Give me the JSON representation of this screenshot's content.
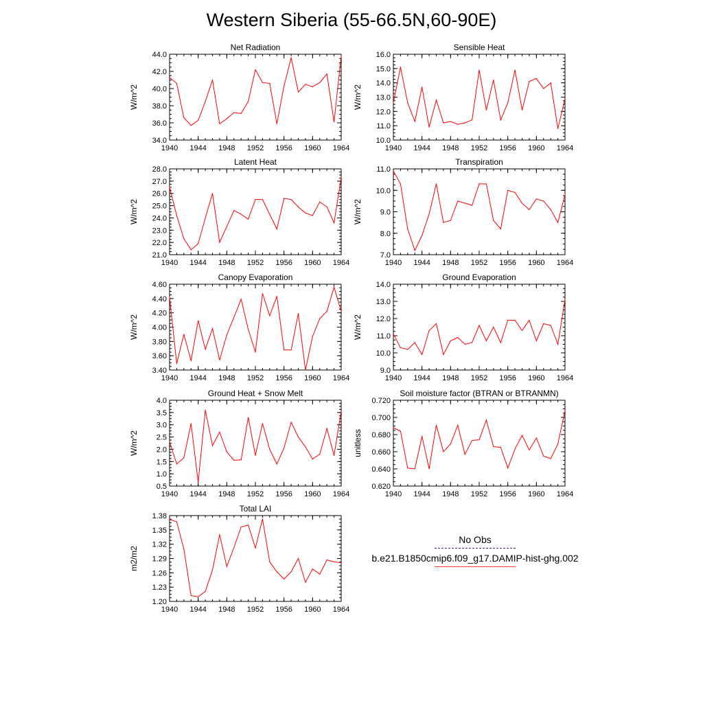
{
  "page": {
    "title": "Western Siberia (55-66.5N,60-90E)"
  },
  "legend": {
    "obs_label": "No Obs",
    "model_label": "b.e21.B1850cmip6.f09_g17.DAMIP-hist-ghg.002",
    "obs_color": "#2a2aaa",
    "model_color": "#ff0000"
  },
  "chart_data": [
    {
      "type": "line",
      "title": "Net Radiation",
      "xlabel": "",
      "ylabel": "W/m^2",
      "xlim": [
        1940,
        1964
      ],
      "ylim": [
        34.0,
        44.0
      ],
      "xticks": [
        "1940",
        "1944",
        "1948",
        "1952",
        "1956",
        "1960",
        "1964"
      ],
      "yticks": [
        "34.0",
        "36.0",
        "38.0",
        "40.0",
        "42.0",
        "44.0"
      ],
      "x": [
        1940,
        1941,
        1942,
        1943,
        1944,
        1945,
        1946,
        1947,
        1948,
        1949,
        1950,
        1951,
        1952,
        1953,
        1954,
        1955,
        1956,
        1957,
        1958,
        1959,
        1960,
        1961,
        1962,
        1963,
        1964
      ],
      "series": [
        {
          "values": [
            41.3,
            40.6,
            36.6,
            35.7,
            36.3,
            38.5,
            41.0,
            35.9,
            36.5,
            37.2,
            37.1,
            38.5,
            42.2,
            40.7,
            40.6,
            35.9,
            40.3,
            43.6,
            39.6,
            40.5,
            40.2,
            40.7,
            41.7,
            36.1,
            43.8
          ]
        }
      ]
    },
    {
      "type": "line",
      "title": "Sensible Heat",
      "xlabel": "",
      "ylabel": "W/m^2",
      "xlim": [
        1940,
        1964
      ],
      "ylim": [
        10.0,
        16.0
      ],
      "xticks": [
        "1940",
        "1944",
        "1948",
        "1952",
        "1956",
        "1960",
        "1964"
      ],
      "yticks": [
        "10.0",
        "11.0",
        "12.0",
        "13.0",
        "14.0",
        "15.0",
        "16.0"
      ],
      "x": [
        1940,
        1941,
        1942,
        1943,
        1944,
        1945,
        1946,
        1947,
        1948,
        1949,
        1950,
        1951,
        1952,
        1953,
        1954,
        1955,
        1956,
        1957,
        1958,
        1959,
        1960,
        1961,
        1962,
        1963,
        1964
      ],
      "series": [
        {
          "values": [
            12.6,
            15.1,
            12.6,
            11.3,
            13.7,
            10.9,
            12.8,
            11.2,
            11.3,
            11.1,
            11.2,
            11.4,
            14.9,
            12.1,
            14.2,
            11.4,
            12.6,
            14.9,
            12.1,
            14.1,
            14.3,
            13.6,
            14.0,
            10.8,
            12.9
          ]
        }
      ]
    },
    {
      "type": "line",
      "title": "Latent Heat",
      "xlabel": "",
      "ylabel": "W/m^2",
      "xlim": [
        1940,
        1964
      ],
      "ylim": [
        21.0,
        28.0
      ],
      "xticks": [
        "1940",
        "1944",
        "1948",
        "1952",
        "1956",
        "1960",
        "1964"
      ],
      "yticks": [
        "21.0",
        "22.0",
        "23.0",
        "24.0",
        "25.0",
        "26.0",
        "27.0",
        "28.0"
      ],
      "x": [
        1940,
        1941,
        1942,
        1943,
        1944,
        1945,
        1946,
        1947,
        1948,
        1949,
        1950,
        1951,
        1952,
        1953,
        1954,
        1955,
        1956,
        1957,
        1958,
        1959,
        1960,
        1961,
        1962,
        1963,
        1964
      ],
      "series": [
        {
          "values": [
            26.5,
            24.2,
            22.3,
            21.4,
            21.9,
            24.0,
            26.0,
            22.0,
            23.3,
            24.6,
            24.3,
            23.9,
            25.5,
            25.5,
            24.3,
            23.1,
            25.6,
            25.5,
            24.9,
            24.4,
            24.2,
            25.3,
            24.9,
            23.6,
            27.3
          ]
        }
      ]
    },
    {
      "type": "line",
      "title": "Transpiration",
      "xlabel": "",
      "ylabel": "W/m^2",
      "xlim": [
        1940,
        1964
      ],
      "ylim": [
        7.0,
        11.0
      ],
      "xticks": [
        "1940",
        "1944",
        "1948",
        "1952",
        "1956",
        "1960",
        "1964"
      ],
      "yticks": [
        "7.0",
        "8.0",
        "9.0",
        "10.0",
        "11.0"
      ],
      "x": [
        1940,
        1941,
        1942,
        1943,
        1944,
        1945,
        1946,
        1947,
        1948,
        1949,
        1950,
        1951,
        1952,
        1953,
        1954,
        1955,
        1956,
        1957,
        1958,
        1959,
        1960,
        1961,
        1962,
        1963,
        1964
      ],
      "series": [
        {
          "values": [
            10.9,
            10.3,
            8.2,
            7.2,
            7.9,
            8.9,
            10.3,
            8.5,
            8.6,
            9.5,
            9.4,
            9.3,
            10.3,
            10.3,
            8.6,
            8.2,
            10.0,
            9.9,
            9.4,
            9.1,
            9.6,
            9.5,
            9.1,
            8.5,
            9.8
          ]
        }
      ]
    },
    {
      "type": "line",
      "title": "Canopy Evaporation",
      "xlabel": "",
      "ylabel": "W/m^2",
      "xlim": [
        1940,
        1964
      ],
      "ylim": [
        3.4,
        4.6
      ],
      "xticks": [
        "1940",
        "1944",
        "1948",
        "1952",
        "1956",
        "1960",
        "1964"
      ],
      "yticks": [
        "3.40",
        "3.60",
        "3.80",
        "4.00",
        "4.20",
        "4.40",
        "4.60"
      ],
      "x": [
        1940,
        1941,
        1942,
        1943,
        1944,
        1945,
        1946,
        1947,
        1948,
        1949,
        1950,
        1951,
        1952,
        1953,
        1954,
        1955,
        1956,
        1957,
        1958,
        1959,
        1960,
        1961,
        1962,
        1963,
        1964
      ],
      "series": [
        {
          "values": [
            4.42,
            3.49,
            3.9,
            3.53,
            4.09,
            3.69,
            3.98,
            3.54,
            3.89,
            4.14,
            4.39,
            3.97,
            3.65,
            4.47,
            4.16,
            4.43,
            3.68,
            3.68,
            4.19,
            3.4,
            3.87,
            4.12,
            4.22,
            4.56,
            4.22
          ]
        }
      ]
    },
    {
      "type": "line",
      "title": "Ground Evaporation",
      "xlabel": "",
      "ylabel": "W/m^2",
      "xlim": [
        1940,
        1964
      ],
      "ylim": [
        9.0,
        14.0
      ],
      "xticks": [
        "1940",
        "1944",
        "1948",
        "1952",
        "1956",
        "1960",
        "1964"
      ],
      "yticks": [
        "9.0",
        "10.0",
        "11.0",
        "12.0",
        "13.0",
        "14.0"
      ],
      "x": [
        1940,
        1941,
        1942,
        1943,
        1944,
        1945,
        1946,
        1947,
        1948,
        1949,
        1950,
        1951,
        1952,
        1953,
        1954,
        1955,
        1956,
        1957,
        1958,
        1959,
        1960,
        1961,
        1962,
        1963,
        1964
      ],
      "series": [
        {
          "values": [
            11.1,
            10.3,
            10.2,
            10.6,
            9.9,
            11.3,
            11.7,
            9.9,
            10.7,
            10.9,
            10.5,
            10.6,
            11.6,
            10.7,
            11.5,
            10.6,
            11.9,
            11.9,
            11.3,
            11.9,
            10.7,
            11.7,
            11.6,
            10.5,
            13.1
          ]
        }
      ]
    },
    {
      "type": "line",
      "title": "Ground Heat + Snow Melt",
      "xlabel": "",
      "ylabel": "W/m^2",
      "xlim": [
        1940,
        1964
      ],
      "ylim": [
        0.5,
        4.0
      ],
      "xticks": [
        "1940",
        "1944",
        "1948",
        "1952",
        "1956",
        "1960",
        "1964"
      ],
      "yticks": [
        "0.5",
        "1.0",
        "1.5",
        "2.0",
        "2.5",
        "3.0",
        "3.5",
        "4.0"
      ],
      "x": [
        1940,
        1941,
        1942,
        1943,
        1944,
        1945,
        1946,
        1947,
        1948,
        1949,
        1950,
        1951,
        1952,
        1953,
        1954,
        1955,
        1956,
        1957,
        1958,
        1959,
        1960,
        1961,
        1962,
        1963,
        1964
      ],
      "series": [
        {
          "values": [
            2.3,
            1.4,
            1.65,
            3.05,
            0.65,
            3.6,
            2.15,
            2.7,
            1.9,
            1.55,
            1.57,
            3.3,
            1.75,
            3.05,
            2.0,
            1.4,
            2.05,
            3.1,
            2.5,
            2.1,
            1.6,
            1.8,
            2.85,
            1.75,
            3.55
          ]
        }
      ]
    },
    {
      "type": "line",
      "title": "Soil moisture factor (BTRAN or BTRANMN)",
      "xlabel": "",
      "ylabel": "unitless",
      "xlim": [
        1940,
        1964
      ],
      "ylim": [
        0.62,
        0.72
      ],
      "xticks": [
        "1940",
        "1944",
        "1948",
        "1952",
        "1956",
        "1960",
        "1964"
      ],
      "yticks": [
        "0.620",
        "0.640",
        "0.660",
        "0.680",
        "0.700",
        "0.720"
      ],
      "x": [
        1940,
        1941,
        1942,
        1943,
        1944,
        1945,
        1946,
        1947,
        1948,
        1949,
        1950,
        1951,
        1952,
        1953,
        1954,
        1955,
        1956,
        1957,
        1958,
        1959,
        1960,
        1961,
        1962,
        1963,
        1964
      ],
      "series": [
        {
          "values": [
            0.688,
            0.684,
            0.641,
            0.64,
            0.678,
            0.64,
            0.691,
            0.66,
            0.669,
            0.691,
            0.657,
            0.673,
            0.674,
            0.697,
            0.666,
            0.665,
            0.641,
            0.663,
            0.679,
            0.662,
            0.676,
            0.655,
            0.652,
            0.669,
            0.708
          ]
        }
      ]
    },
    {
      "type": "line",
      "title": "Total LAI",
      "xlabel": "",
      "ylabel": "m2/m2",
      "xlim": [
        1940,
        1964
      ],
      "ylim": [
        1.2,
        1.38
      ],
      "xticks": [
        "1940",
        "1944",
        "1948",
        "1952",
        "1956",
        "1960",
        "1964"
      ],
      "yticks": [
        "1.20",
        "1.23",
        "1.26",
        "1.29",
        "1.32",
        "1.35",
        "1.38"
      ],
      "x": [
        1940,
        1941,
        1942,
        1943,
        1944,
        1945,
        1946,
        1947,
        1948,
        1949,
        1950,
        1951,
        1952,
        1953,
        1954,
        1955,
        1956,
        1957,
        1958,
        1959,
        1960,
        1961,
        1962,
        1963,
        1964
      ],
      "series": [
        {
          "values": [
            1.372,
            1.367,
            1.31,
            1.212,
            1.21,
            1.221,
            1.266,
            1.34,
            1.273,
            1.313,
            1.356,
            1.36,
            1.312,
            1.373,
            1.283,
            1.262,
            1.247,
            1.262,
            1.29,
            1.24,
            1.268,
            1.257,
            1.287,
            1.283,
            1.281
          ]
        }
      ]
    }
  ]
}
